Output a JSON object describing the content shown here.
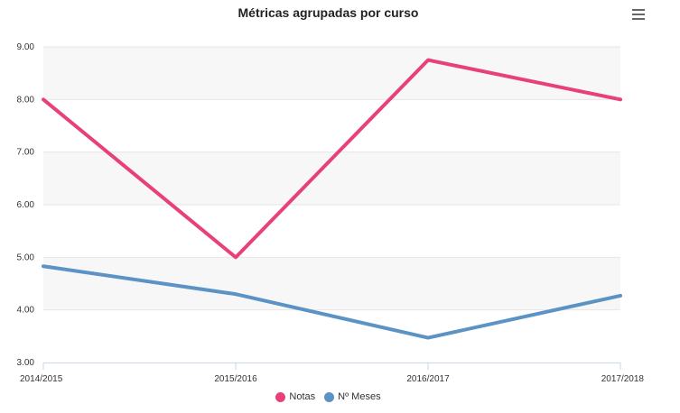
{
  "chart_data": {
    "type": "line",
    "title": "Métricas agrupadas por curso",
    "categories": [
      "2014/2015",
      "2015/2016",
      "2016/2017",
      "2017/2018"
    ],
    "series": [
      {
        "name": "Notas",
        "values": [
          8.0,
          5.0,
          8.75,
          8.0
        ],
        "color": "#e8417a"
      },
      {
        "name": "Nº Meses",
        "values": [
          4.83,
          4.3,
          3.47,
          4.27
        ],
        "color": "#5b93c4"
      }
    ],
    "yticks": [
      "3.00",
      "4.00",
      "5.00",
      "6.00",
      "7.00",
      "8.00",
      "9.00"
    ],
    "ylim": [
      3,
      9
    ],
    "xlabel": "",
    "ylabel": "",
    "grid": true,
    "alternate_band_color": "#f7f7f7",
    "legend_position": "bottom"
  },
  "menu_icon": "hamburger-menu-icon"
}
